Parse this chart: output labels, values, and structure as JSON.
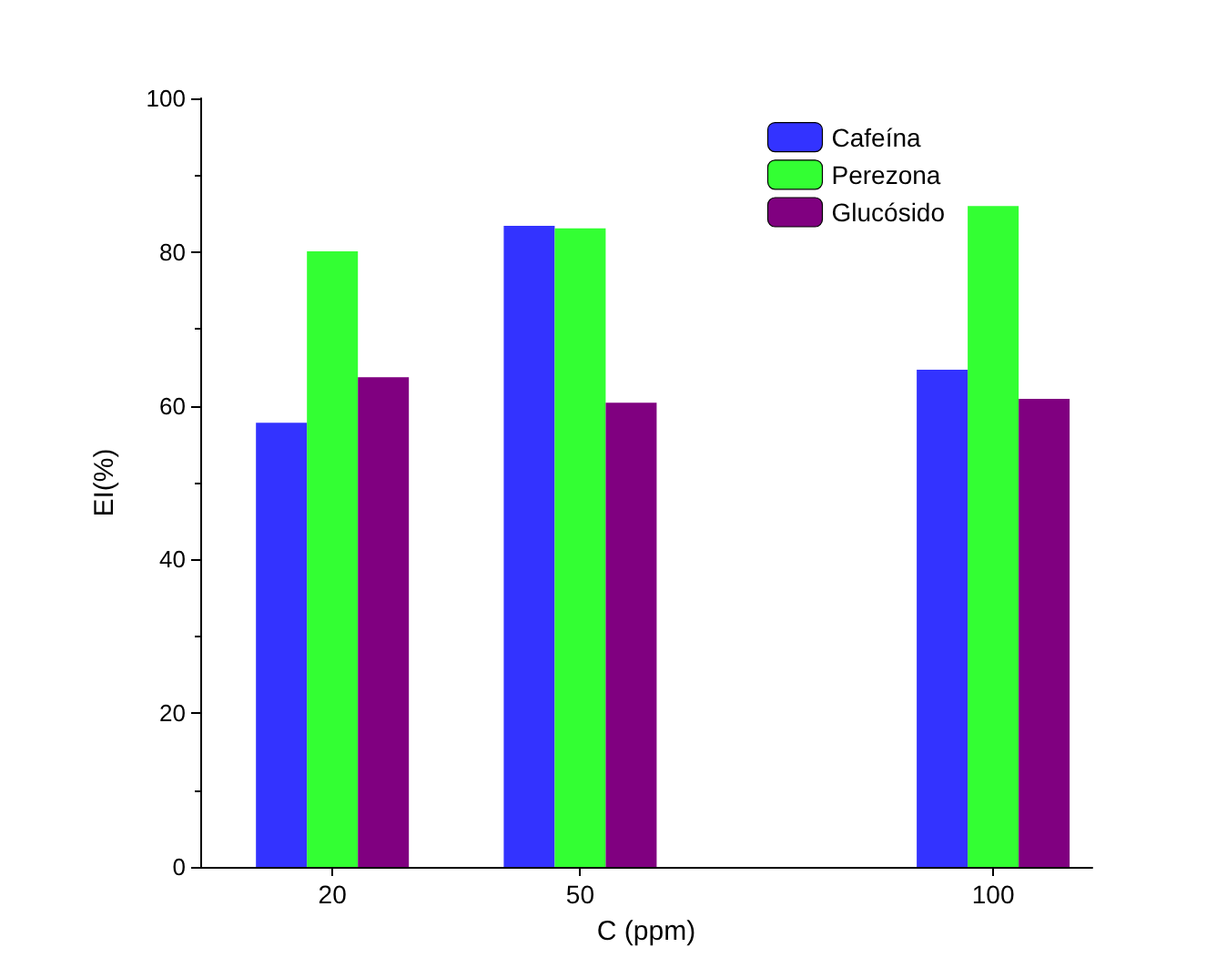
{
  "chart_data": {
    "type": "bar",
    "xlabel": "C (ppm)",
    "ylabel": "EI(%)",
    "x": [
      20,
      50,
      100
    ],
    "xlim": [
      4,
      112
    ],
    "xticks": [
      20,
      50,
      100
    ],
    "ylim": [
      0,
      100
    ],
    "yticks": [
      0,
      20,
      40,
      60,
      80,
      100
    ],
    "grid": false,
    "legend": "top right",
    "series": [
      {
        "name": "Cafeína",
        "color": "#3333ff",
        "values": [
          57.8,
          83.4,
          64.7
        ]
      },
      {
        "name": "Perezona",
        "color": "#33ff33",
        "values": [
          80.1,
          83.1,
          86.0
        ]
      },
      {
        "name": "Glucósido",
        "color": "#800080",
        "values": [
          63.7,
          60.4,
          60.9
        ]
      }
    ]
  }
}
